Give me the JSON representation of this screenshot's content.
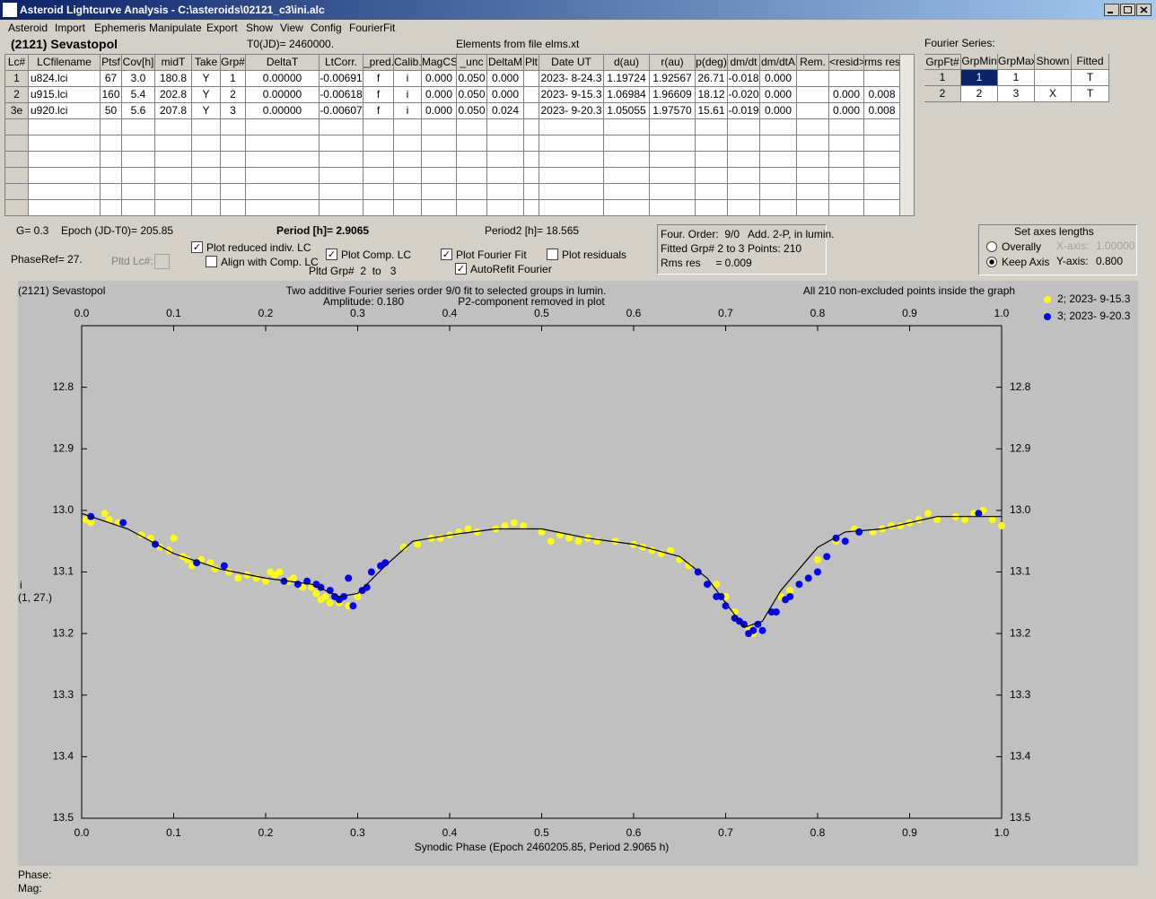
{
  "window": {
    "title": "Asteroid Lightcurve Analysis - C:\\asteroids\\02121_c3\\ini.alc"
  },
  "menu": [
    "Asteroid",
    "Import",
    "Ephemeris",
    "Manipulate",
    "Export",
    "Show",
    "View",
    "Config",
    "FourierFit"
  ],
  "header": {
    "object": "(2121) Sevastopol",
    "t0": "T0(JD)= 2460000.",
    "elements": "Elements from file elms.xt",
    "fourier_label": "Fourier Series:"
  },
  "lc_table": {
    "columns": [
      "Lc#",
      "LCfilename",
      "Ptsf",
      "Cov[h]",
      "midT",
      "Take",
      "Grp#",
      "DeltaT",
      "LtCorr.",
      "_pred.",
      "Calib.",
      "MagCS",
      "_unc",
      "DeltaM",
      "Plt",
      "Date UT",
      "d(au)",
      "r(au)",
      "p(deg)",
      "dm/dt",
      "dm/dtA",
      "Rem.",
      "<resid>",
      "rms res"
    ],
    "rows": [
      [
        "1",
        "u824.lci",
        "67",
        "3.0",
        "180.8",
        "Y",
        "1",
        "0.00000",
        "-0.00691",
        "f",
        "i",
        "0.000",
        "0.050",
        "0.000",
        null,
        "2023- 8-24.3",
        "1.19724",
        "1.92567",
        "26.71",
        "-0.018",
        "0.000",
        null,
        null,
        null
      ],
      [
        "2",
        "u915.lci",
        "160",
        "5.4",
        "202.8",
        "Y",
        "2",
        "0.00000",
        "-0.00618",
        "f",
        "i",
        "0.000",
        "0.050",
        "0.000",
        null,
        "2023- 9-15.3",
        "1.06984",
        "1.96609",
        "18.12",
        "-0.020",
        "0.000",
        null,
        "0.000",
        "0.008"
      ],
      [
        "3e",
        "u920.lci",
        "50",
        "5.6",
        "207.8",
        "Y",
        "3",
        "0.00000",
        "-0.00607",
        "f",
        "i",
        "0.000",
        "0.050",
        "0.024",
        null,
        "2023- 9-20.3",
        "1.05055",
        "1.97570",
        "15.61",
        "-0.019",
        "0.000",
        null,
        "0.000",
        "0.008"
      ]
    ]
  },
  "fourier_table": {
    "columns": [
      "GrpFt#",
      "GrpMin",
      "GrpMax",
      "Shown",
      "Fitted"
    ],
    "rows": [
      [
        "1",
        "1",
        "1",
        null,
        "T"
      ],
      [
        "2",
        "2",
        "3",
        "X",
        "T"
      ]
    ]
  },
  "params": {
    "g": "G= 0.3",
    "epoch": "Epoch (JD-T0)= 205.85",
    "period": "Period [h]= 2.9065",
    "period2": "Period2 [h]= 18.565",
    "phaseref": "PhaseRef= 27.",
    "pltd_lc": "Pltd Lc#:",
    "pltd_grp": "Pltd Grp#  2  to   3"
  },
  "checkboxes": [
    {
      "label": "Plot reduced indiv. LC",
      "checked": true
    },
    {
      "label": "Align with Comp. LC",
      "checked": false
    },
    {
      "label": "Plot Comp. LC",
      "checked": true
    },
    {
      "label": "Plot Fourier Fit",
      "checked": true
    },
    {
      "label": "Plot residuals",
      "checked": false
    },
    {
      "label": "AutoRefit Fourier",
      "checked": true
    }
  ],
  "fit_info": [
    "Four. Order:  9/0",
    "Add. 2-P, in lumin.",
    "Fitted Grp# 2 to 3",
    "Points: 210",
    "Rms res     = 0.009"
  ],
  "axes_box": {
    "title": "Set axes lengths",
    "radios": [
      {
        "label": "Overally",
        "selected": false
      },
      {
        "label": "Keep Axis",
        "selected": true
      }
    ],
    "x_label": "X-axis:",
    "x_value": "1.00000",
    "y_label": "Y-axis:",
    "y_value": "0.800"
  },
  "status": {
    "phase": "Phase:",
    "mag": "Mag:"
  },
  "chart_data": {
    "type": "scatter",
    "title": "(2121) Sevastopol",
    "annotations": [
      "Two additive Fourier series order 9/0 fit to selected groups in lumin.",
      "Amplitude: 0.180",
      "P2-component removed in plot",
      "All 210 non-excluded points inside the graph"
    ],
    "y_label": "i",
    "y_label_sub": "(1, 27.)",
    "x_label": "Synodic Phase (Epoch 2460205.85, Period 2.9065 h)",
    "xlim": [
      0,
      1
    ],
    "ylim": [
      12.7,
      13.5
    ],
    "y_inverted": true,
    "xticks": [
      {
        "value": 0,
        "label": "0.0"
      },
      0.1,
      0.2,
      0.3,
      0.4,
      0.5,
      0.6,
      0.7,
      0.8,
      0.9,
      {
        "value": 1,
        "label": "1.0"
      }
    ],
    "yticks": [
      12.8,
      12.9,
      {
        "value": 13,
        "label": "13.0"
      },
      13.1,
      13.2,
      13.3,
      13.4,
      13.5
    ],
    "series": [
      {
        "name": "2; 2023- 9-15.3",
        "color": "#ffff00",
        "x": [
          0.005,
          0.01,
          0.025,
          0.03,
          0.04,
          0.065,
          0.075,
          0.085,
          0.095,
          0.1,
          0.11,
          0.115,
          0.12,
          0.13,
          0.14,
          0.145,
          0.16,
          0.17,
          0.18,
          0.19,
          0.2,
          0.205,
          0.21,
          0.215,
          0.225,
          0.23,
          0.24,
          0.25,
          0.255,
          0.26,
          0.265,
          0.27,
          0.28,
          0.29,
          0.3,
          0.35,
          0.365,
          0.38,
          0.39,
          0.4,
          0.41,
          0.42,
          0.43,
          0.45,
          0.46,
          0.47,
          0.48,
          0.5,
          0.51,
          0.52,
          0.53,
          0.54,
          0.55,
          0.56,
          0.58,
          0.6,
          0.61,
          0.62,
          0.63,
          0.64,
          0.65,
          0.66,
          0.67,
          0.69,
          0.7,
          0.71,
          0.72,
          0.725,
          0.73,
          0.76,
          0.77,
          0.8,
          0.82,
          0.84,
          0.86,
          0.87,
          0.88,
          0.89,
          0.9,
          0.91,
          0.92,
          0.93,
          0.95,
          0.96,
          0.97,
          0.98,
          0.99,
          1.0
        ],
        "values": [
          13.015,
          13.02,
          13.005,
          13.015,
          13.02,
          13.04,
          13.045,
          13.06,
          13.065,
          13.045,
          13.075,
          13.08,
          13.09,
          13.08,
          13.085,
          13.095,
          13.1,
          13.11,
          13.105,
          13.11,
          13.115,
          13.1,
          13.105,
          13.1,
          13.115,
          13.11,
          13.125,
          13.125,
          13.135,
          13.145,
          13.14,
          13.15,
          13.15,
          13.155,
          13.14,
          13.06,
          13.055,
          13.045,
          13.045,
          13.04,
          13.035,
          13.03,
          13.035,
          13.03,
          13.025,
          13.02,
          13.025,
          13.035,
          13.05,
          13.04,
          13.045,
          13.05,
          13.045,
          13.05,
          13.05,
          13.055,
          13.06,
          13.065,
          13.07,
          13.065,
          13.08,
          13.09,
          13.1,
          13.12,
          13.14,
          13.165,
          13.185,
          13.19,
          13.2,
          13.14,
          13.13,
          13.08,
          13.05,
          13.03,
          13.035,
          13.03,
          13.025,
          13.025,
          13.02,
          13.015,
          13.005,
          13.015,
          13.01,
          13.015,
          13.005,
          13.0,
          13.015,
          13.025
        ]
      },
      {
        "name": "3; 2023- 9-20.3",
        "color": "#0000ff",
        "x": [
          0.01,
          0.045,
          0.08,
          0.125,
          0.155,
          0.22,
          0.235,
          0.245,
          0.255,
          0.26,
          0.27,
          0.275,
          0.28,
          0.285,
          0.29,
          0.295,
          0.305,
          0.31,
          0.315,
          0.325,
          0.33,
          0.67,
          0.68,
          0.69,
          0.695,
          0.7,
          0.71,
          0.715,
          0.72,
          0.725,
          0.73,
          0.735,
          0.74,
          0.75,
          0.755,
          0.765,
          0.77,
          0.78,
          0.79,
          0.8,
          0.81,
          0.82,
          0.83,
          0.845,
          0.975
        ],
        "values": [
          13.01,
          13.02,
          13.055,
          13.085,
          13.09,
          13.115,
          13.12,
          13.115,
          13.12,
          13.125,
          13.13,
          13.14,
          13.145,
          13.14,
          13.11,
          13.155,
          13.13,
          13.125,
          13.1,
          13.09,
          13.085,
          13.1,
          13.12,
          13.14,
          13.14,
          13.155,
          13.175,
          13.18,
          13.185,
          13.2,
          13.195,
          13.185,
          13.195,
          13.165,
          13.165,
          13.145,
          13.14,
          13.12,
          13.11,
          13.1,
          13.075,
          13.045,
          13.05,
          13.035,
          13.005
        ]
      }
    ],
    "fit": {
      "color": "#000000",
      "x": [
        0,
        0.05,
        0.1,
        0.15,
        0.2,
        0.25,
        0.28,
        0.3,
        0.33,
        0.36,
        0.4,
        0.45,
        0.5,
        0.55,
        0.6,
        0.65,
        0.68,
        0.7,
        0.72,
        0.74,
        0.76,
        0.8,
        0.83,
        0.87,
        0.9,
        0.93,
        0.97,
        1.0
      ],
      "values": [
        13.005,
        13.03,
        13.07,
        13.095,
        13.11,
        13.12,
        13.14,
        13.135,
        13.09,
        13.05,
        13.04,
        13.03,
        13.03,
        13.045,
        13.055,
        13.075,
        13.11,
        13.15,
        13.19,
        13.18,
        13.13,
        13.06,
        13.035,
        13.03,
        13.02,
        13.01,
        13.01,
        13.01
      ]
    }
  }
}
